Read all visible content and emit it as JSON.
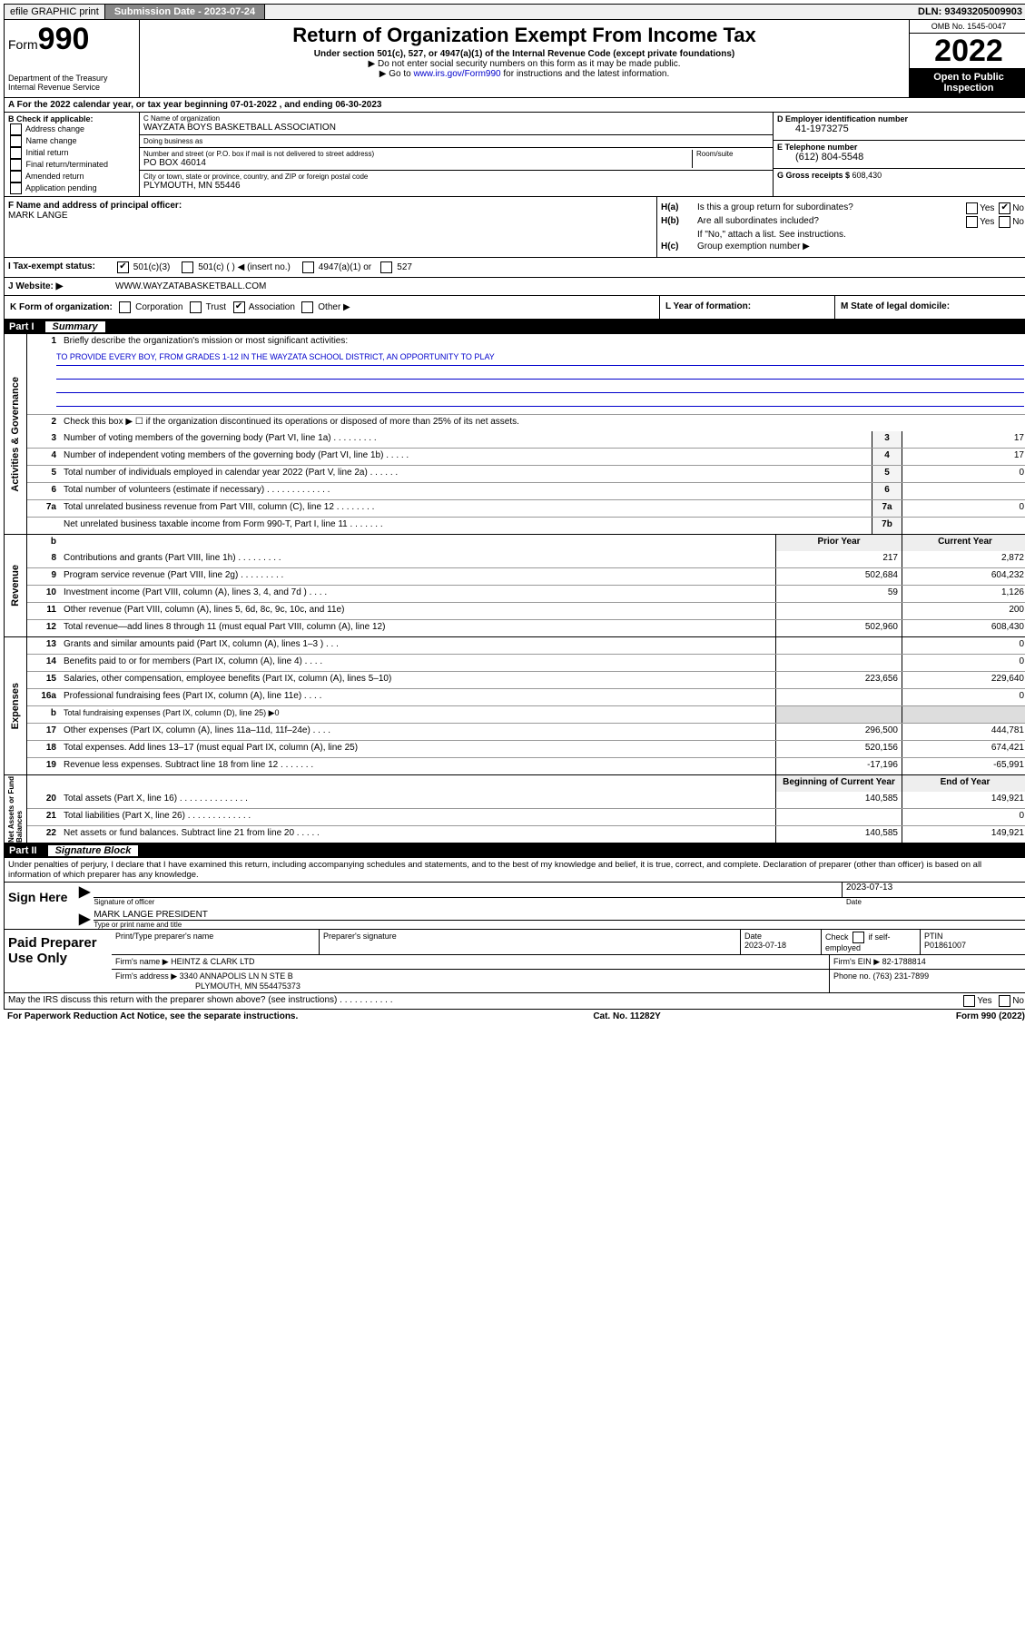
{
  "topbar": {
    "efile": "efile GRAPHIC print",
    "submission_label": "Submission Date - ",
    "submission_date": "2023-07-24",
    "dln_label": "DLN: ",
    "dln": "93493205009903"
  },
  "header": {
    "form_label": "Form",
    "form_num": "990",
    "dept": "Department of the Treasury\nInternal Revenue Service",
    "title": "Return of Organization Exempt From Income Tax",
    "sub1": "Under section 501(c), 527, or 4947(a)(1) of the Internal Revenue Code (except private foundations)",
    "sub2": "▶ Do not enter social security numbers on this form as it may be made public.",
    "sub3_pre": "▶ Go to ",
    "sub3_link": "www.irs.gov/Form990",
    "sub3_post": " for instructions and the latest information.",
    "omb": "OMB No. 1545-0047",
    "year": "2022",
    "open_public": "Open to Public Inspection"
  },
  "row_a": "A For the 2022 calendar year, or tax year beginning 07-01-2022    , and ending 06-30-2023",
  "col_b": {
    "title": "B Check if applicable:",
    "items": [
      "Address change",
      "Name change",
      "Initial return",
      "Final return/terminated",
      "Amended return",
      "Application pending"
    ]
  },
  "col_c": {
    "name_label": "C Name of organization",
    "name": "WAYZATA BOYS BASKETBALL ASSOCIATION",
    "dba_label": "Doing business as",
    "dba": "",
    "street_label": "Number and street (or P.O. box if mail is not delivered to street address)",
    "room_label": "Room/suite",
    "street": "PO BOX 46014",
    "city_label": "City or town, state or province, country, and ZIP or foreign postal code",
    "city": "PLYMOUTH, MN  55446"
  },
  "col_de": {
    "d_label": "D Employer identification number",
    "d_val": "41-1973275",
    "e_label": "E Telephone number",
    "e_val": "(612) 804-5548",
    "g_label": "G Gross receipts $ ",
    "g_val": "608,430"
  },
  "sec_f": {
    "label": "F Name and address of principal officer:",
    "name": "MARK LANGE"
  },
  "sec_h": {
    "ha": "Is this a group return for subordinates?",
    "hb": "Are all subordinates included?",
    "hb_note": "If \"No,\" attach a list. See instructions.",
    "hc": "Group exemption number ▶",
    "yes": "Yes",
    "no": "No"
  },
  "row_i": {
    "label": "I    Tax-exempt status:",
    "opts": [
      "501(c)(3)",
      "501(c) (  ) ◀ (insert no.)",
      "4947(a)(1) or",
      "527"
    ]
  },
  "row_j": {
    "label": "J    Website: ▶",
    "val": "WWW.WAYZATABASKETBALL.COM"
  },
  "row_klm": {
    "k_label": "K Form of organization:",
    "k_opts": [
      "Corporation",
      "Trust",
      "Association",
      "Other ▶"
    ],
    "l_label": "L Year of formation:",
    "m_label": "M State of legal domicile:"
  },
  "part1": {
    "label": "Part I",
    "title": "Summary"
  },
  "gov": {
    "tab": "Activities & Governance",
    "l1": "Briefly describe the organization's mission or most significant activities:",
    "l1_val": "TO PROVIDE EVERY BOY, FROM GRADES 1-12 IN THE WAYZATA SCHOOL DISTRICT, AN OPPORTUNITY TO PLAY",
    "l2": "Check this box ▶ ☐  if the organization discontinued its operations or disposed of more than 25% of its net assets.",
    "lines": [
      {
        "n": "3",
        "d": "Number of voting members of the governing body (Part VI, line 1a)  .   .   .   .   .   .   .   .   .",
        "b": "3",
        "v": "17"
      },
      {
        "n": "4",
        "d": "Number of independent voting members of the governing body (Part VI, line 1b)  .   .   .   .   .",
        "b": "4",
        "v": "17"
      },
      {
        "n": "5",
        "d": "Total number of individuals employed in calendar year 2022 (Part V, line 2a)  .   .   .   .   .   .",
        "b": "5",
        "v": "0"
      },
      {
        "n": "6",
        "d": "Total number of volunteers (estimate if necessary)  .   .   .   .   .   .   .   .   .   .   .   .   .",
        "b": "6",
        "v": ""
      },
      {
        "n": "7a",
        "d": "Total unrelated business revenue from Part VIII, column (C), line 12  .   .   .   .   .   .   .   .",
        "b": "7a",
        "v": "0"
      },
      {
        "n": "",
        "d": "Net unrelated business taxable income from Form 990-T, Part I, line 11  .   .   .   .   .   .   .",
        "b": "7b",
        "v": ""
      }
    ]
  },
  "rev": {
    "tab": "Revenue",
    "hdr_b": "b",
    "hdr_prior": "Prior Year",
    "hdr_curr": "Current Year",
    "lines": [
      {
        "n": "8",
        "d": "Contributions and grants (Part VIII, line 1h)   .   .   .   .   .   .   .   .   .",
        "p": "217",
        "c": "2,872"
      },
      {
        "n": "9",
        "d": "Program service revenue (Part VIII, line 2g)   .   .   .   .   .   .   .   .   .",
        "p": "502,684",
        "c": "604,232"
      },
      {
        "n": "10",
        "d": "Investment income (Part VIII, column (A), lines 3, 4, and 7d )   .   .   .   .",
        "p": "59",
        "c": "1,126"
      },
      {
        "n": "11",
        "d": "Other revenue (Part VIII, column (A), lines 5, 6d, 8c, 9c, 10c, and 11e)",
        "p": "",
        "c": "200"
      },
      {
        "n": "12",
        "d": "Total revenue—add lines 8 through 11 (must equal Part VIII, column (A), line 12)",
        "p": "502,960",
        "c": "608,430"
      }
    ]
  },
  "exp": {
    "tab": "Expenses",
    "lines": [
      {
        "n": "13",
        "d": "Grants and similar amounts paid (Part IX, column (A), lines 1–3 )   .   .   .",
        "p": "",
        "c": "0"
      },
      {
        "n": "14",
        "d": "Benefits paid to or for members (Part IX, column (A), line 4)   .   .   .   .",
        "p": "",
        "c": "0"
      },
      {
        "n": "15",
        "d": "Salaries, other compensation, employee benefits (Part IX, column (A), lines 5–10)",
        "p": "223,656",
        "c": "229,640"
      },
      {
        "n": "16a",
        "d": "Professional fundraising fees (Part IX, column (A), line 11e)   .   .   .   .",
        "p": "",
        "c": "0"
      },
      {
        "n": "b",
        "d": "Total fundraising expenses (Part IX, column (D), line 25) ▶0",
        "p": null,
        "c": null
      },
      {
        "n": "17",
        "d": "Other expenses (Part IX, column (A), lines 11a–11d, 11f–24e)  .   .   .   .",
        "p": "296,500",
        "c": "444,781"
      },
      {
        "n": "18",
        "d": "Total expenses. Add lines 13–17 (must equal Part IX, column (A), line 25)",
        "p": "520,156",
        "c": "674,421"
      },
      {
        "n": "19",
        "d": "Revenue less expenses. Subtract line 18 from line 12  .   .   .   .   .   .   .",
        "p": "-17,196",
        "c": "-65,991"
      }
    ]
  },
  "net": {
    "tab": "Net Assets or Fund Balances",
    "hdr_prior": "Beginning of Current Year",
    "hdr_curr": "End of Year",
    "lines": [
      {
        "n": "20",
        "d": "Total assets (Part X, line 16)  .   .   .   .   .   .   .   .   .   .   .   .   .   .",
        "p": "140,585",
        "c": "149,921"
      },
      {
        "n": "21",
        "d": "Total liabilities (Part X, line 26)  .   .   .   .   .   .   .   .   .   .   .   .   .",
        "p": "",
        "c": "0"
      },
      {
        "n": "22",
        "d": "Net assets or fund balances. Subtract line 21 from line 20   .   .   .   .   .",
        "p": "140,585",
        "c": "149,921"
      }
    ]
  },
  "part2": {
    "label": "Part II",
    "title": "Signature Block"
  },
  "sig_text": "Under penalties of perjury, I declare that I have examined this return, including accompanying schedules and statements, and to the best of my knowledge and belief, it is true, correct, and complete. Declaration of preparer (other than officer) is based on all information of which preparer has any knowledge.",
  "sign": {
    "here": "Sign Here",
    "sig_label": "Signature of officer",
    "date_label": "Date",
    "date": "2023-07-13",
    "name": "MARK LANGE  PRESIDENT",
    "name_label": "Type or print name and title"
  },
  "prep": {
    "label": "Paid Preparer Use Only",
    "h1": "Print/Type preparer's name",
    "h2": "Preparer's signature",
    "h3": "Date",
    "h3v": "2023-07-18",
    "h4a": "Check",
    "h4b": "if self-employed",
    "h5": "PTIN",
    "h5v": "P01861007",
    "firm_label": "Firm's name    ▶",
    "firm": "HEINTZ & CLARK LTD",
    "ein_label": "Firm's EIN ▶",
    "ein": "82-1788814",
    "addr_label": "Firm's address ▶",
    "addr1": "3340 ANNAPOLIS LN N STE B",
    "addr2": "PLYMOUTH, MN  554475373",
    "phone_label": "Phone no. ",
    "phone": "(763) 231-7899"
  },
  "footer": {
    "q": "May the IRS discuss this return with the preparer shown above? (see instructions)   .   .   .   .   .   .   .   .   .   .   .",
    "yes": "Yes",
    "no": "No"
  },
  "bottom": {
    "l": "For Paperwork Reduction Act Notice, see the separate instructions.",
    "m": "Cat. No. 11282Y",
    "r": "Form 990 (2022)"
  }
}
